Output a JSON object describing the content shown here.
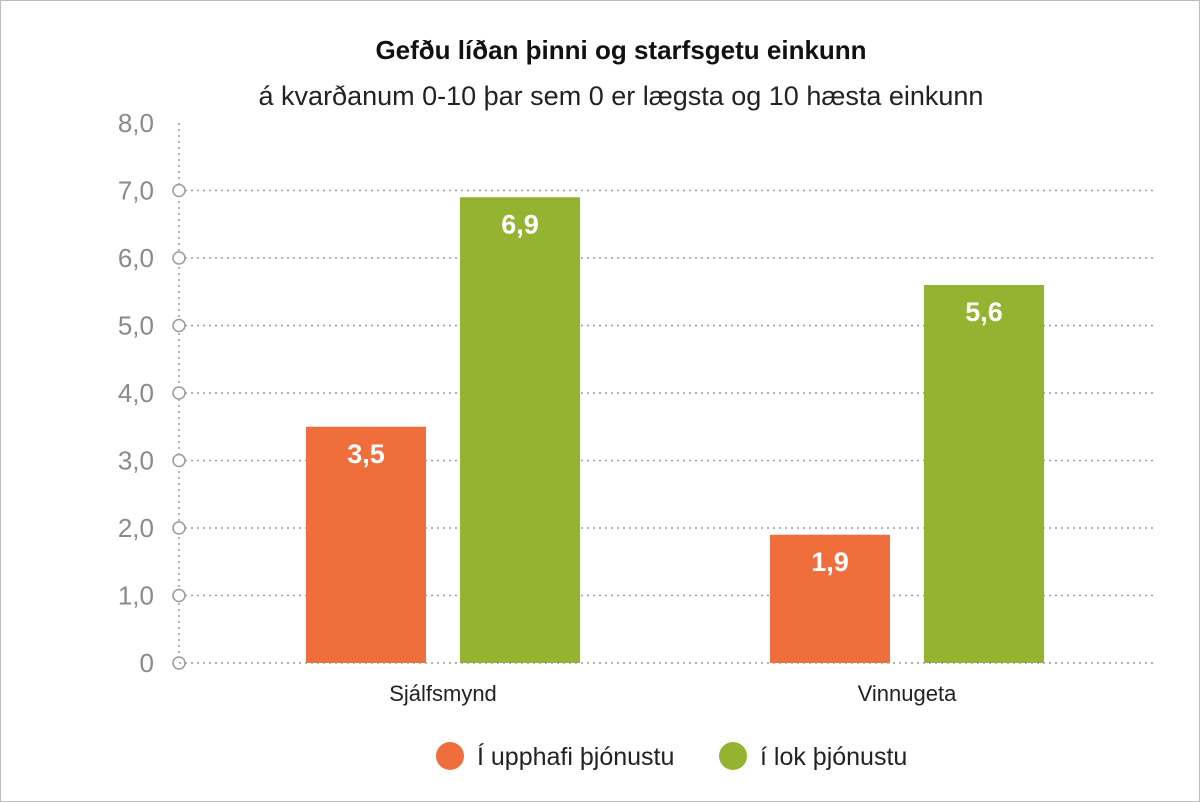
{
  "chart_data": {
    "type": "bar",
    "title": "Gefðu líðan þinni og starfsgetu einkunn",
    "subtitle": "á kvarðanum 0-10 þar sem 0 er lægsta og 10 hæsta einkunn",
    "categories": [
      "Sjálfsmynd",
      "Vinnugeta"
    ],
    "series": [
      {
        "name": "Í upphafi þjónustu",
        "values": [
          3.5,
          1.9
        ],
        "labels": [
          "3,5",
          "1,9"
        ],
        "color": "#ef6e3b"
      },
      {
        "name": "í lok þjónustu",
        "values": [
          6.9,
          5.6
        ],
        "labels": [
          "6,9",
          "5,6"
        ],
        "color": "#94b330"
      }
    ],
    "ylim": [
      0,
      8
    ],
    "yticks": [
      {
        "value": 0,
        "label": "0"
      },
      {
        "value": 1,
        "label": "1,0"
      },
      {
        "value": 2,
        "label": "2,0"
      },
      {
        "value": 3,
        "label": "3,0"
      },
      {
        "value": 4,
        "label": "4,0"
      },
      {
        "value": 5,
        "label": "5,0"
      },
      {
        "value": 6,
        "label": "6,0"
      },
      {
        "value": 7,
        "label": "7,0"
      },
      {
        "value": 8,
        "label": "8,0"
      }
    ],
    "grid": true,
    "legend": "bottom-center",
    "axis_color": "#9a9a9a"
  }
}
